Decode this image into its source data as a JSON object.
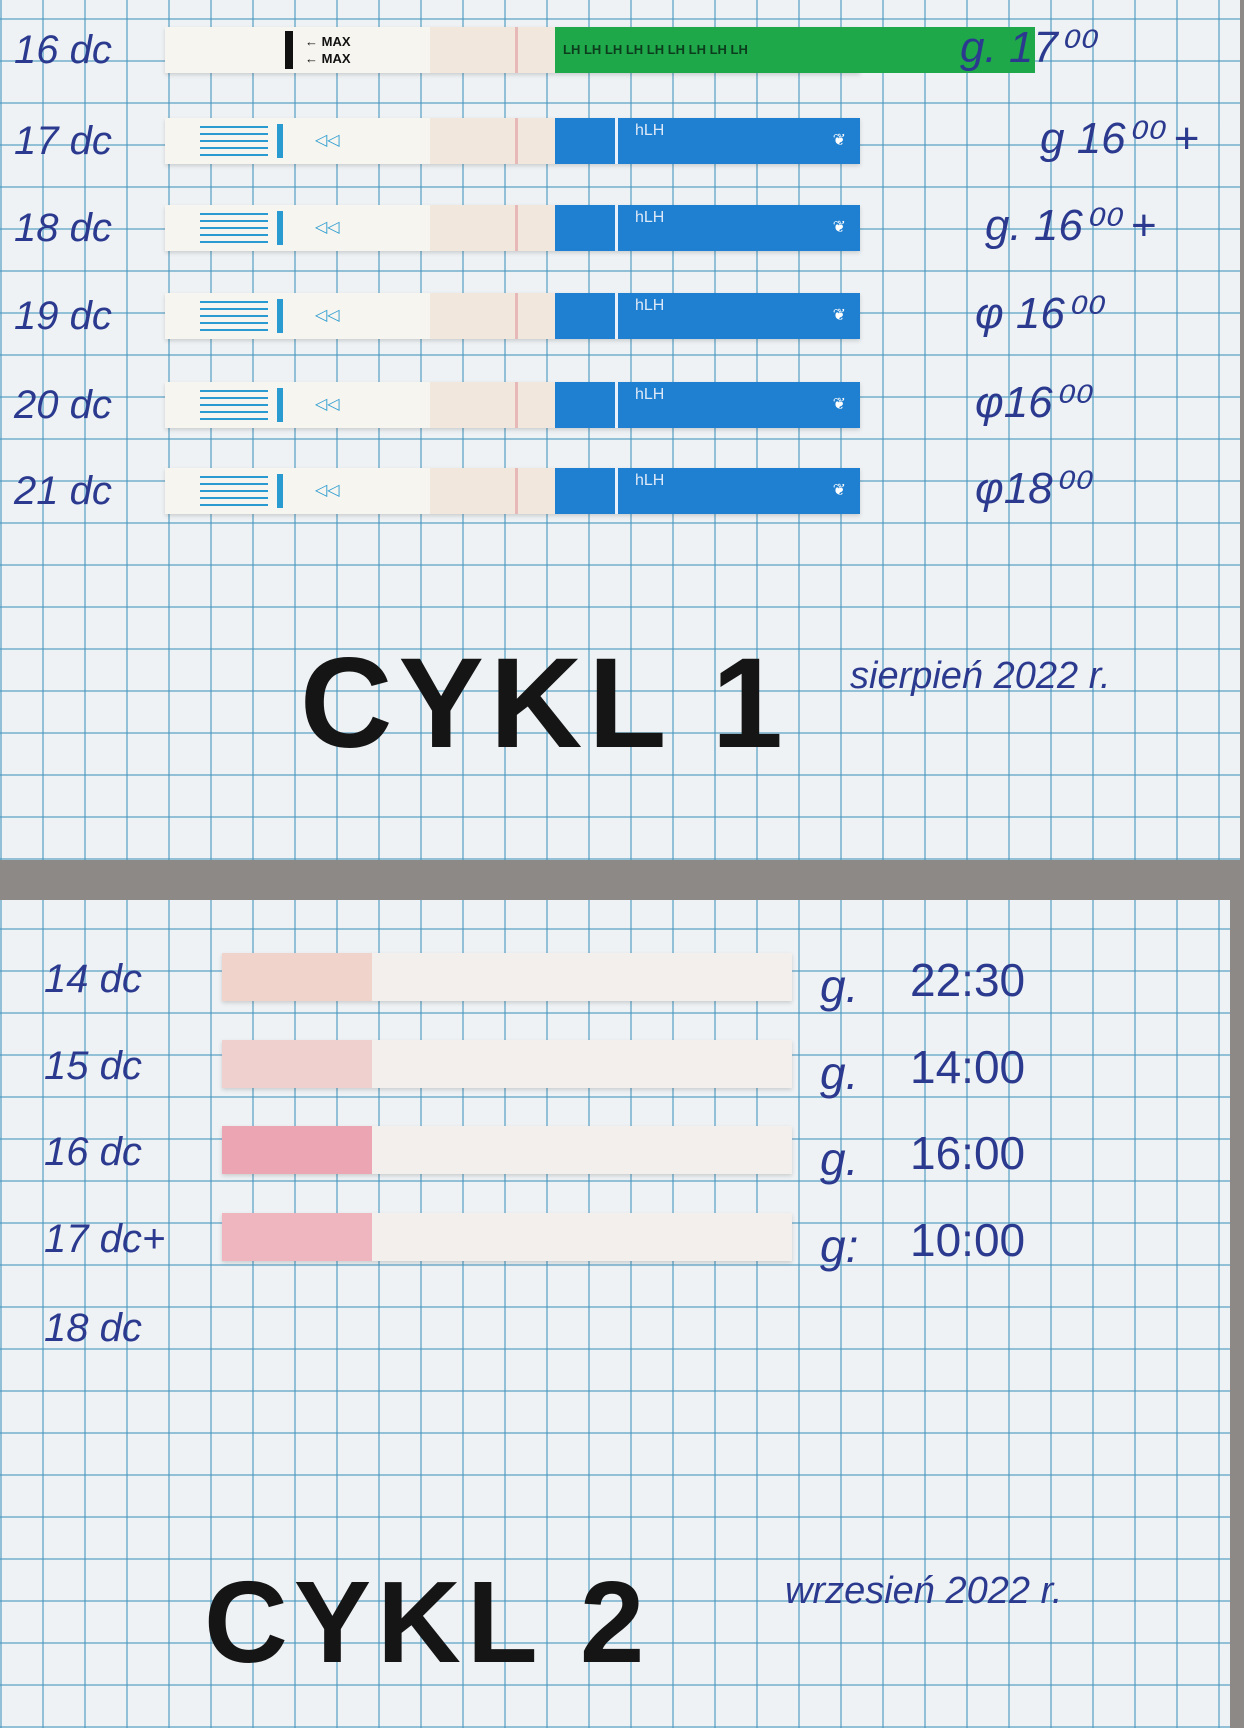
{
  "cycle1": {
    "title": "CYKL 1",
    "date": "sierpień 2022 r.",
    "rows": [
      {
        "day": "16 dc",
        "time": "g. 17⁰⁰",
        "strip": "green",
        "brand": "LH LH LH LH LH LH LH LH LH",
        "handle_text": "MAX"
      },
      {
        "day": "17 dc",
        "time": "g 16⁰⁰ +",
        "strip": "blue",
        "brand": "hLH"
      },
      {
        "day": "18 dc",
        "time": "g. 16⁰⁰ +",
        "strip": "blue",
        "brand": "hLH"
      },
      {
        "day": "19 dc",
        "time": "φ 16⁰⁰",
        "strip": "blue",
        "brand": "hLH"
      },
      {
        "day": "20 dc",
        "time": "φ16⁰⁰",
        "strip": "blue",
        "brand": "hLH"
      },
      {
        "day": "21 dc",
        "time": "φ18⁰⁰",
        "strip": "blue",
        "brand": "hLH"
      }
    ]
  },
  "cycle2": {
    "title": "CYKL 2",
    "date": "wrzesień 2022 r.",
    "rows": [
      {
        "day": "14 dc",
        "g": "g.",
        "time": "22:30"
      },
      {
        "day": "15 dc",
        "g": "g.",
        "time": "14:00"
      },
      {
        "day": "16 dc",
        "g": "g.",
        "time": "16:00"
      },
      {
        "day": "17 dc+",
        "g": "g:",
        "time": "10:00"
      },
      {
        "day": "18 dc"
      }
    ]
  },
  "colors": {
    "ink": "#2b3a8f",
    "strip_blue": "#1f7fd0",
    "strip_green": "#1fa84a",
    "test_line": "#d2405a"
  }
}
